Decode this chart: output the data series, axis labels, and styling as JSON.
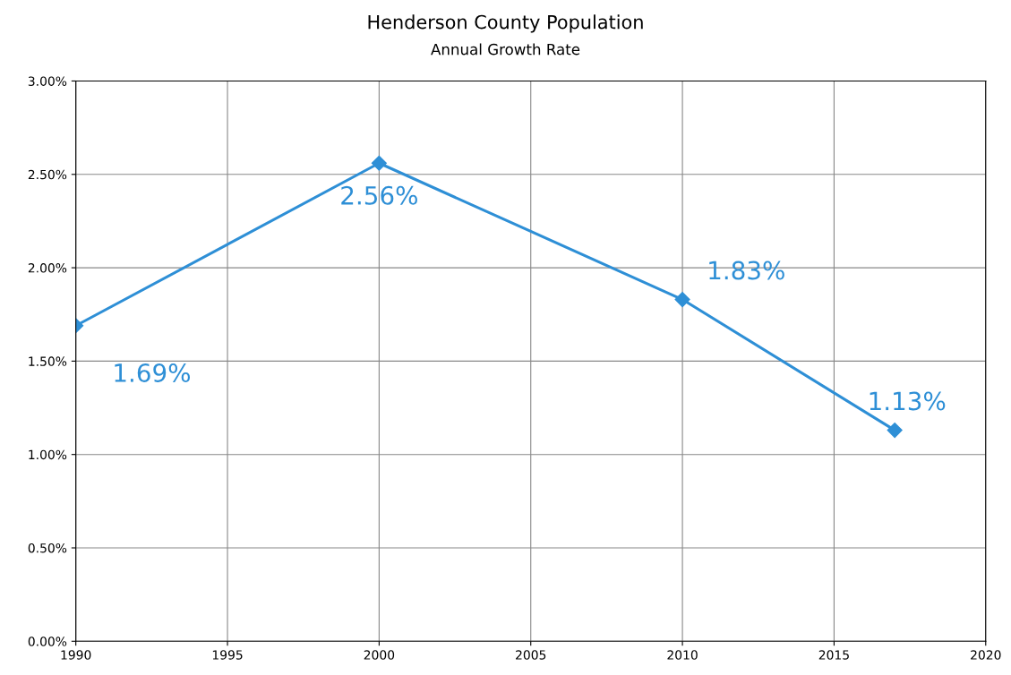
{
  "chart_data": {
    "type": "line",
    "title": "Henderson County Population",
    "subtitle": "Annual Growth Rate",
    "x": [
      1990,
      2000,
      2010,
      2017
    ],
    "series": [
      {
        "color": "#2e8fd6",
        "values": [
          1.69,
          2.56,
          1.83,
          1.13
        ],
        "value_labels": [
          "1.69%",
          "2.56%",
          "1.83%",
          "1.13%"
        ]
      }
    ],
    "xlim": [
      1990,
      2020
    ],
    "xticks": [
      1990,
      1995,
      2000,
      2005,
      2010,
      2015,
      2020
    ],
    "ylim": [
      0,
      3
    ],
    "yticks": [
      {
        "value": 0,
        "label": "0.00%"
      },
      {
        "value": 0.5,
        "label": "0.50%"
      },
      {
        "value": 1,
        "label": "1.00%"
      },
      {
        "value": 1.5,
        "label": "1.50%"
      },
      {
        "value": 2,
        "label": "2.00%"
      },
      {
        "value": 2.5,
        "label": "2.50%"
      },
      {
        "value": 3,
        "label": "3.00%"
      }
    ],
    "grid": true,
    "marker": "diamond",
    "line_style": "solid"
  }
}
